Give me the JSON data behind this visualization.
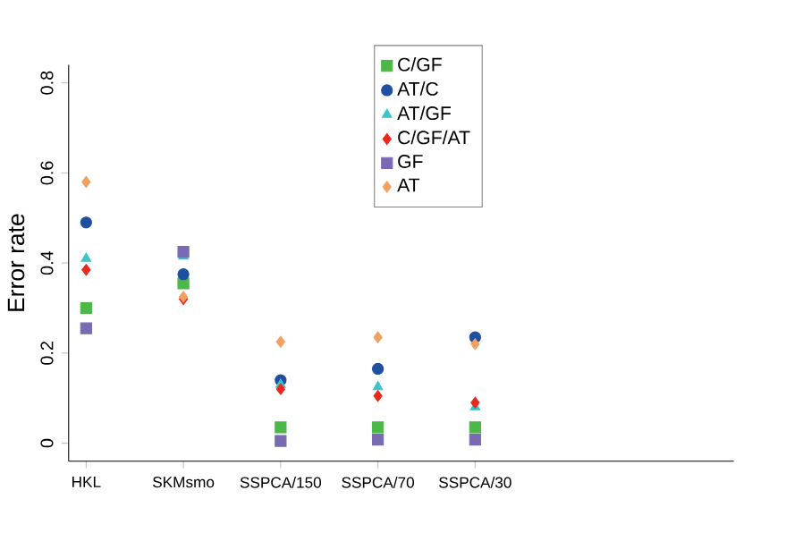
{
  "chart_data": {
    "type": "scatter",
    "ylabel": "Error rate",
    "categories": [
      "HKL",
      "SKMsmo",
      "SSPCA/150",
      "SSPCA/70",
      "SSPCA/30"
    ],
    "ylim": [
      -0.04,
      0.84
    ],
    "yticks": [
      0,
      0.2,
      0.4,
      0.6,
      0.8
    ],
    "legend": "top",
    "grid": false,
    "series": [
      {
        "name": "C/GF",
        "color": "#4cb848",
        "marker": "square",
        "values": [
          0.3,
          0.355,
          0.035,
          0.035,
          0.035
        ]
      },
      {
        "name": "AT/C",
        "color": "#1f4fa0",
        "marker": "circle",
        "values": [
          0.49,
          0.375,
          0.14,
          0.165,
          0.235
        ]
      },
      {
        "name": "AT/GF",
        "color": "#3cc4cc",
        "marker": "triangle",
        "values": [
          0.41,
          0.415,
          0.13,
          0.125,
          0.08
        ]
      },
      {
        "name": "C/GF/AT",
        "color": "#e8291c",
        "marker": "diamond",
        "values": [
          0.385,
          0.32,
          0.12,
          0.105,
          0.09
        ]
      },
      {
        "name": "GF",
        "color": "#7a6ab4",
        "marker": "square",
        "values": [
          0.255,
          0.425,
          0.005,
          0.008,
          0.008
        ]
      },
      {
        "name": "AT",
        "color": "#f0a060",
        "marker": "diamond",
        "values": [
          0.58,
          0.325,
          0.225,
          0.235,
          0.22
        ]
      }
    ]
  }
}
